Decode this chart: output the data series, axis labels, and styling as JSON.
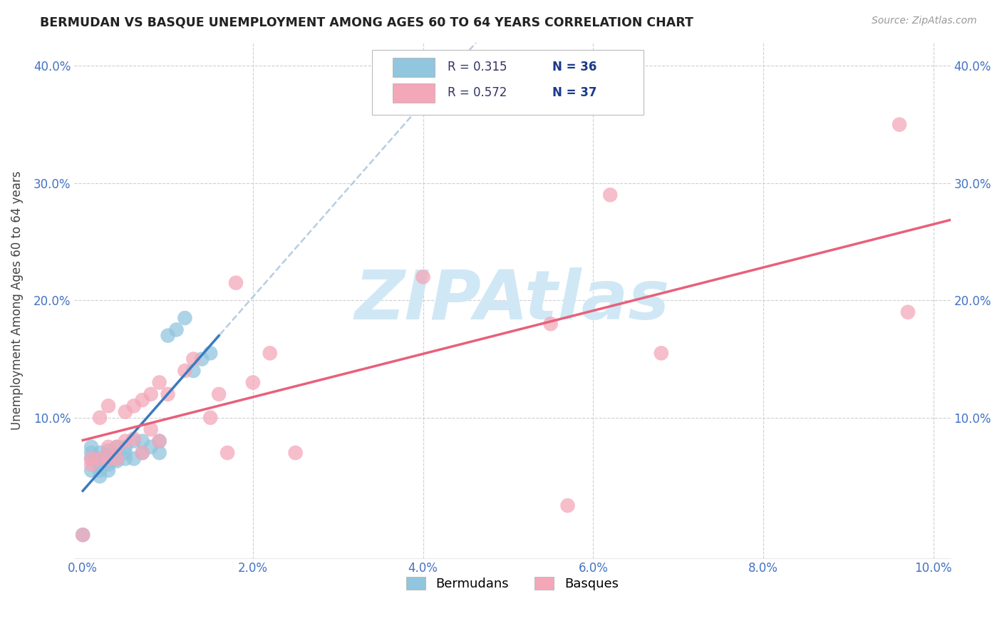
{
  "title": "BERMUDAN VS BASQUE UNEMPLOYMENT AMONG AGES 60 TO 64 YEARS CORRELATION CHART",
  "source": "Source: ZipAtlas.com",
  "ylabel": "Unemployment Among Ages 60 to 64 years",
  "xlim": [
    -0.001,
    0.102
  ],
  "ylim": [
    -0.02,
    0.42
  ],
  "xtick_labels": [
    "0.0%",
    "2.0%",
    "4.0%",
    "6.0%",
    "8.0%",
    "10.0%"
  ],
  "xtick_values": [
    0.0,
    0.02,
    0.04,
    0.06,
    0.08,
    0.1
  ],
  "ytick_labels": [
    "10.0%",
    "20.0%",
    "30.0%",
    "40.0%"
  ],
  "ytick_values": [
    0.1,
    0.2,
    0.3,
    0.4
  ],
  "R_blue": 0.315,
  "N_blue": 36,
  "R_pink": 0.572,
  "N_pink": 37,
  "bermuda_scatter_color": "#92c5de",
  "basque_scatter_color": "#f4a7b9",
  "blue_line_color": "#3a7abf",
  "pink_line_color": "#e8607a",
  "dashed_line_color": "#b0c8e0",
  "watermark_color": "#d0e8f5",
  "title_color": "#222222",
  "axis_label_color": "#444444",
  "tick_color_blue": "#4472c4",
  "legend_text_dark": "#333366",
  "legend_num_color": "#1a3a8a",
  "legend_label_blue": "Bermudans",
  "legend_label_pink": "Basques",
  "background_color": "#ffffff",
  "grid_color": "#d0d0d0",
  "bermuda_x": [
    0.0,
    0.001,
    0.001,
    0.001,
    0.001,
    0.002,
    0.002,
    0.002,
    0.002,
    0.002,
    0.003,
    0.003,
    0.003,
    0.003,
    0.003,
    0.003,
    0.004,
    0.004,
    0.004,
    0.004,
    0.005,
    0.005,
    0.005,
    0.006,
    0.006,
    0.007,
    0.007,
    0.008,
    0.009,
    0.009,
    0.01,
    0.011,
    0.012,
    0.013,
    0.014,
    0.015
  ],
  "bermuda_y": [
    0.0,
    0.055,
    0.065,
    0.07,
    0.075,
    0.05,
    0.055,
    0.06,
    0.065,
    0.07,
    0.055,
    0.06,
    0.063,
    0.065,
    0.068,
    0.072,
    0.063,
    0.065,
    0.068,
    0.075,
    0.065,
    0.07,
    0.075,
    0.065,
    0.08,
    0.07,
    0.08,
    0.075,
    0.07,
    0.08,
    0.17,
    0.175,
    0.185,
    0.14,
    0.15,
    0.155
  ],
  "basque_x": [
    0.0,
    0.001,
    0.001,
    0.002,
    0.002,
    0.003,
    0.003,
    0.003,
    0.004,
    0.004,
    0.005,
    0.005,
    0.006,
    0.006,
    0.007,
    0.007,
    0.008,
    0.008,
    0.009,
    0.009,
    0.01,
    0.012,
    0.013,
    0.015,
    0.016,
    0.017,
    0.018,
    0.02,
    0.022,
    0.025,
    0.04,
    0.055,
    0.057,
    0.062,
    0.068,
    0.096,
    0.097
  ],
  "basque_y": [
    0.0,
    0.06,
    0.065,
    0.065,
    0.1,
    0.065,
    0.075,
    0.11,
    0.065,
    0.075,
    0.08,
    0.105,
    0.082,
    0.11,
    0.07,
    0.115,
    0.09,
    0.12,
    0.08,
    0.13,
    0.12,
    0.14,
    0.15,
    0.1,
    0.12,
    0.07,
    0.215,
    0.13,
    0.155,
    0.07,
    0.22,
    0.18,
    0.025,
    0.29,
    0.155,
    0.35,
    0.19
  ]
}
